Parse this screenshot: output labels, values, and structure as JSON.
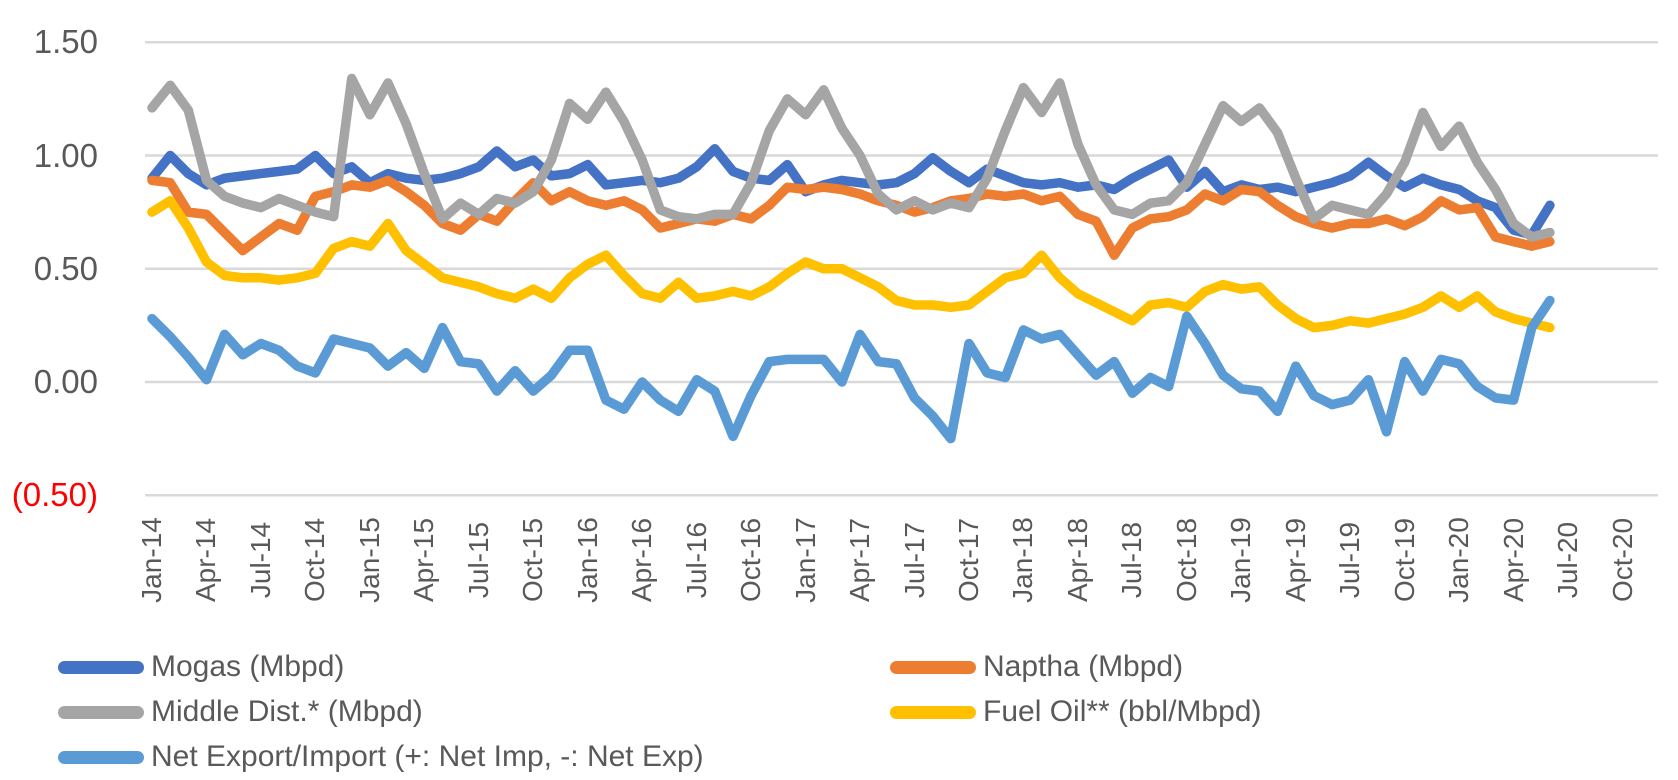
{
  "chart_data": {
    "type": "line",
    "title": "",
    "xlabel": "",
    "ylabel": "",
    "ylim": [
      -0.5,
      1.5
    ],
    "grid": "horizontal-only",
    "legend_position": "bottom",
    "y_ticks": [
      1.5,
      1.0,
      0.5,
      0.0,
      -0.5
    ],
    "y_tick_labels": [
      "1.50",
      "1.00",
      "0.50",
      "0.00",
      "(0.50)"
    ],
    "x_tick_labels": [
      "Jan-14",
      "Apr-14",
      "Jul-14",
      "Oct-14",
      "Jan-15",
      "Apr-15",
      "Jul-15",
      "Oct-15",
      "Jan-16",
      "Apr-16",
      "Jul-16",
      "Oct-16",
      "Jan-17",
      "Apr-17",
      "Jul-17",
      "Oct-17",
      "Jan-18",
      "Apr-18",
      "Jul-18",
      "Oct-18",
      "Jan-19",
      "Apr-19",
      "Jul-19",
      "Oct-19",
      "Jan-20",
      "Apr-20",
      "Jul-20",
      "Oct-20"
    ],
    "x": [
      "Jan-14",
      "Feb-14",
      "Mar-14",
      "Apr-14",
      "May-14",
      "Jun-14",
      "Jul-14",
      "Aug-14",
      "Sep-14",
      "Oct-14",
      "Nov-14",
      "Dec-14",
      "Jan-15",
      "Feb-15",
      "Mar-15",
      "Apr-15",
      "May-15",
      "Jun-15",
      "Jul-15",
      "Aug-15",
      "Sep-15",
      "Oct-15",
      "Nov-15",
      "Dec-15",
      "Jan-16",
      "Feb-16",
      "Mar-16",
      "Apr-16",
      "May-16",
      "Jun-16",
      "Jul-16",
      "Aug-16",
      "Sep-16",
      "Oct-16",
      "Nov-16",
      "Dec-16",
      "Jan-17",
      "Feb-17",
      "Mar-17",
      "Apr-17",
      "May-17",
      "Jun-17",
      "Jul-17",
      "Aug-17",
      "Sep-17",
      "Oct-17",
      "Nov-17",
      "Dec-17",
      "Jan-18",
      "Feb-18",
      "Mar-18",
      "Apr-18",
      "May-18",
      "Jun-18",
      "Jul-18",
      "Aug-18",
      "Sep-18",
      "Oct-18",
      "Nov-18",
      "Dec-18",
      "Jan-19",
      "Feb-19",
      "Mar-19",
      "Apr-19",
      "May-19",
      "Jun-19",
      "Jul-19",
      "Aug-19",
      "Sep-19",
      "Oct-19",
      "Nov-19",
      "Dec-19",
      "Jan-20",
      "Feb-20",
      "Mar-20",
      "Apr-20",
      "May-20",
      "Jun-20"
    ],
    "series": [
      {
        "id": "mogas",
        "name": "Mogas (Mbpd)",
        "color": "#4472C4",
        "values": [
          0.9,
          1.0,
          0.92,
          0.87,
          0.9,
          0.91,
          0.92,
          0.93,
          0.94,
          1.0,
          0.92,
          0.95,
          0.88,
          0.92,
          0.9,
          0.89,
          0.9,
          0.92,
          0.95,
          1.02,
          0.95,
          0.98,
          0.91,
          0.92,
          0.96,
          0.87,
          0.88,
          0.89,
          0.88,
          0.9,
          0.95,
          1.03,
          0.93,
          0.9,
          0.89,
          0.96,
          0.84,
          0.87,
          0.89,
          0.88,
          0.87,
          0.88,
          0.92,
          0.99,
          0.93,
          0.88,
          0.94,
          0.91,
          0.88,
          0.87,
          0.88,
          0.86,
          0.87,
          0.85,
          0.9,
          0.94,
          0.98,
          0.86,
          0.93,
          0.84,
          0.87,
          0.85,
          0.86,
          0.84,
          0.86,
          0.88,
          0.91,
          0.97,
          0.91,
          0.86,
          0.9,
          0.87,
          0.85,
          0.8,
          0.77,
          0.67,
          0.65,
          0.78
        ]
      },
      {
        "id": "naptha",
        "name": "Naptha (Mbpd)",
        "color": "#ED7D31",
        "values": [
          0.89,
          0.88,
          0.75,
          0.74,
          0.66,
          0.58,
          0.64,
          0.7,
          0.67,
          0.82,
          0.84,
          0.87,
          0.86,
          0.89,
          0.84,
          0.78,
          0.7,
          0.67,
          0.74,
          0.71,
          0.8,
          0.88,
          0.8,
          0.84,
          0.8,
          0.78,
          0.8,
          0.76,
          0.68,
          0.7,
          0.72,
          0.71,
          0.74,
          0.72,
          0.78,
          0.86,
          0.85,
          0.86,
          0.85,
          0.83,
          0.8,
          0.78,
          0.75,
          0.77,
          0.8,
          0.81,
          0.83,
          0.82,
          0.83,
          0.8,
          0.82,
          0.74,
          0.71,
          0.56,
          0.68,
          0.72,
          0.73,
          0.76,
          0.83,
          0.8,
          0.85,
          0.84,
          0.78,
          0.73,
          0.7,
          0.68,
          0.7,
          0.7,
          0.72,
          0.69,
          0.73,
          0.8,
          0.76,
          0.77,
          0.64,
          0.62,
          0.6,
          0.62
        ]
      },
      {
        "id": "middle-dist",
        "name": "Middle Dist.* (Mbpd)",
        "color": "#A5A5A5",
        "values": [
          1.21,
          1.31,
          1.2,
          0.89,
          0.82,
          0.79,
          0.77,
          0.81,
          0.78,
          0.75,
          0.73,
          1.34,
          1.18,
          1.32,
          1.14,
          0.92,
          0.72,
          0.79,
          0.74,
          0.81,
          0.79,
          0.84,
          0.98,
          1.23,
          1.16,
          1.28,
          1.15,
          0.98,
          0.76,
          0.73,
          0.72,
          0.74,
          0.74,
          0.88,
          1.11,
          1.25,
          1.18,
          1.29,
          1.12,
          1.0,
          0.83,
          0.76,
          0.8,
          0.76,
          0.79,
          0.77,
          0.9,
          1.11,
          1.3,
          1.19,
          1.32,
          1.05,
          0.87,
          0.76,
          0.74,
          0.79,
          0.8,
          0.88,
          1.05,
          1.22,
          1.15,
          1.21,
          1.1,
          0.9,
          0.72,
          0.78,
          0.76,
          0.74,
          0.83,
          0.97,
          1.19,
          1.04,
          1.13,
          0.97,
          0.85,
          0.7,
          0.64,
          0.66
        ]
      },
      {
        "id": "fuel-oil",
        "name": "Fuel Oil** (bbl/Mbpd)",
        "color": "#FFC000",
        "values": [
          0.75,
          0.8,
          0.68,
          0.53,
          0.47,
          0.46,
          0.46,
          0.45,
          0.46,
          0.48,
          0.59,
          0.62,
          0.6,
          0.7,
          0.58,
          0.52,
          0.46,
          0.44,
          0.42,
          0.39,
          0.37,
          0.41,
          0.37,
          0.46,
          0.52,
          0.56,
          0.47,
          0.39,
          0.37,
          0.44,
          0.37,
          0.38,
          0.4,
          0.38,
          0.42,
          0.48,
          0.53,
          0.5,
          0.5,
          0.46,
          0.42,
          0.36,
          0.34,
          0.34,
          0.33,
          0.34,
          0.4,
          0.46,
          0.48,
          0.56,
          0.46,
          0.39,
          0.35,
          0.31,
          0.27,
          0.34,
          0.35,
          0.33,
          0.4,
          0.43,
          0.41,
          0.42,
          0.34,
          0.28,
          0.24,
          0.25,
          0.27,
          0.26,
          0.28,
          0.3,
          0.33,
          0.38,
          0.33,
          0.38,
          0.31,
          0.28,
          0.26,
          0.24
        ]
      },
      {
        "id": "net-export-import",
        "name": "Net Export/Import (+: Net Imp, -: Net Exp)",
        "color": "#5B9BD5",
        "values": [
          0.28,
          0.2,
          0.11,
          0.01,
          0.21,
          0.12,
          0.17,
          0.14,
          0.07,
          0.04,
          0.19,
          0.17,
          0.15,
          0.07,
          0.13,
          0.06,
          0.24,
          0.09,
          0.08,
          -0.04,
          0.05,
          -0.04,
          0.03,
          0.14,
          0.14,
          -0.08,
          -0.12,
          0.0,
          -0.08,
          -0.13,
          0.01,
          -0.04,
          -0.24,
          -0.06,
          0.09,
          0.1,
          0.1,
          0.1,
          0.0,
          0.21,
          0.09,
          0.08,
          -0.07,
          -0.15,
          -0.25,
          0.17,
          0.04,
          0.02,
          0.23,
          0.19,
          0.21,
          0.12,
          0.03,
          0.09,
          -0.05,
          0.02,
          -0.02,
          0.29,
          0.17,
          0.03,
          -0.03,
          -0.04,
          -0.13,
          0.07,
          -0.06,
          -0.1,
          -0.08,
          0.01,
          -0.22,
          0.09,
          -0.04,
          0.1,
          0.08,
          -0.02,
          -0.07,
          -0.08,
          0.24,
          0.36
        ]
      }
    ]
  },
  "colors": {
    "gridline": "#D9D9D9",
    "axis_text": "#595959",
    "negative_tick": "#FF0000",
    "background": "#FFFFFF"
  },
  "legend": {
    "items": [
      {
        "id": "mogas",
        "label": "Mogas (Mbpd)",
        "color": "#4472C4",
        "col": 0,
        "row": 0
      },
      {
        "id": "naptha",
        "label": "Naptha (Mbpd)",
        "color": "#ED7D31",
        "col": 1,
        "row": 0
      },
      {
        "id": "middle-dist",
        "label": "Middle Dist.* (Mbpd)",
        "color": "#A5A5A5",
        "col": 0,
        "row": 1
      },
      {
        "id": "fuel-oil",
        "label": "Fuel Oil** (bbl/Mbpd)",
        "color": "#FFC000",
        "col": 1,
        "row": 1
      },
      {
        "id": "net-export-import",
        "label": "Net Export/Import (+: Net Imp, -: Net Exp)",
        "color": "#5B9BD5",
        "col": 0,
        "row": 2
      }
    ]
  }
}
